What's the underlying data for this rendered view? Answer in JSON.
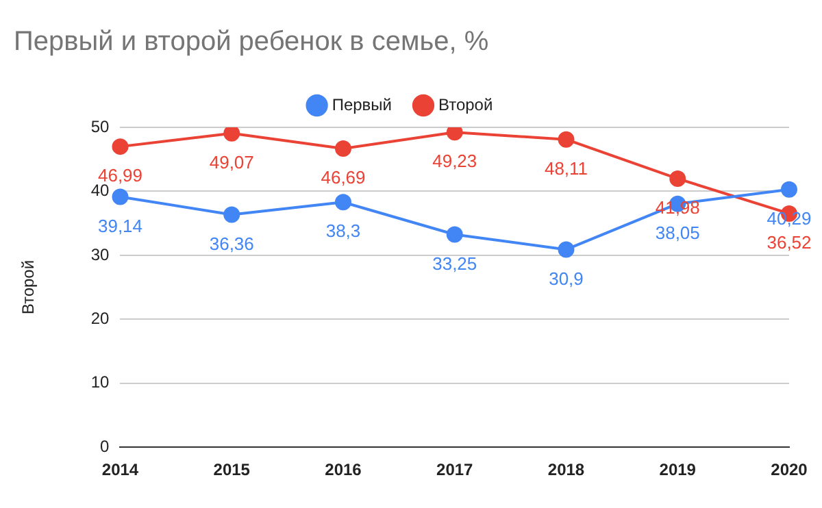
{
  "chart_data": {
    "type": "line",
    "title": "Первый и второй ребенок в семье, %",
    "ylabel": "Второй",
    "categories": [
      "2014",
      "2015",
      "2016",
      "2017",
      "2018",
      "2019",
      "2020"
    ],
    "series": [
      {
        "name": "Первый",
        "color": "#4285f4",
        "values": [
          39.14,
          36.36,
          38.3,
          33.25,
          30.9,
          38.05,
          40.29
        ],
        "value_labels": [
          "39,14",
          "36,36",
          "38,3",
          "33,25",
          "30,9",
          "38,05",
          "40,29"
        ]
      },
      {
        "name": "Второй",
        "color": "#ea4335",
        "values": [
          46.99,
          49.07,
          46.69,
          49.23,
          48.11,
          41.98,
          36.52
        ],
        "value_labels": [
          "46,99",
          "49,07",
          "46,69",
          "49,23",
          "48,11",
          "41,98",
          "36,52"
        ]
      }
    ],
    "ylim": [
      0,
      50
    ],
    "yticks": [
      0,
      10,
      20,
      30,
      40,
      50
    ],
    "grid": "y",
    "legend": "top",
    "marker": "circle",
    "line_style": "solid"
  }
}
